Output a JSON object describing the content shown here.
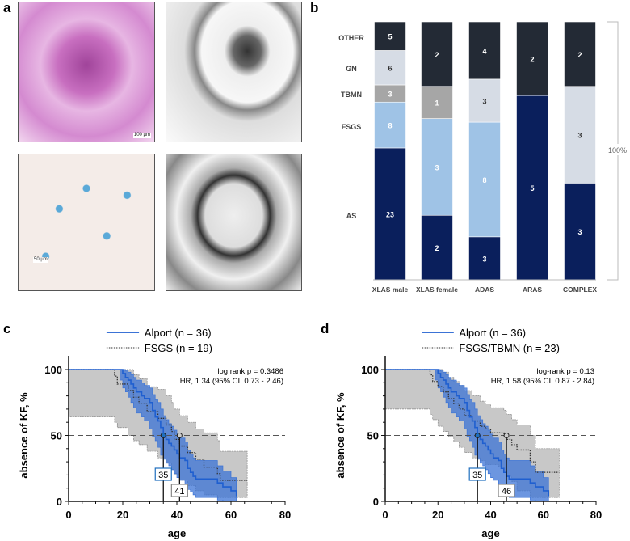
{
  "panel_labels": {
    "a": "a",
    "b": "b",
    "c": "c",
    "d": "d"
  },
  "panel_a": {
    "images": [
      "PAS light microscopy glomerulus",
      "Electron microscopy GBM",
      "Light microscopy high magnification",
      "Electron microscopy GBM detail"
    ],
    "scale_bars": [
      "100 µm",
      "50 µm"
    ]
  },
  "chart_data": [
    {
      "type": "bar",
      "stacked": true,
      "normalized": true,
      "title": "",
      "categories": [
        "XLAS male",
        "XLAS female",
        "ADAS",
        "ARAS",
        "COMPLEX"
      ],
      "series": [
        {
          "name": "AS",
          "color": "#0a1f5c",
          "values": [
            23,
            2,
            3,
            5,
            3
          ]
        },
        {
          "name": "FSGS",
          "color": "#9fc3e6",
          "values": [
            8,
            3,
            8,
            0,
            0
          ]
        },
        {
          "name": "TBMN",
          "color": "#a6a6a6",
          "values": [
            3,
            1,
            0,
            0,
            0
          ]
        },
        {
          "name": "GN",
          "color": "#d6dce5",
          "values": [
            6,
            0,
            3,
            0,
            3
          ]
        },
        {
          "name": "OTHER",
          "color": "#232a35",
          "values": [
            5,
            2,
            4,
            2,
            2
          ]
        }
      ],
      "bracket_label": "100%"
    },
    {
      "type": "line",
      "subtype": "kaplan-meier",
      "xlabel": "age",
      "ylabel": "absence of KF, %",
      "xlim": [
        0,
        80
      ],
      "ylim": [
        0,
        100
      ],
      "xticks": [
        0,
        20,
        40,
        60,
        80
      ],
      "yticks": [
        0,
        50,
        100
      ],
      "annotation": [
        "log rank p =  0.3486",
        "HR, 1.34 (95% CI, 0.73 - 2.46)"
      ],
      "series": [
        {
          "name": "Alport (n = 36)",
          "style": "solid",
          "color": "#3b73d6",
          "median": 35,
          "t": [
            0,
            19,
            20,
            21,
            22,
            23,
            24,
            25,
            27,
            28,
            30,
            31,
            32,
            33,
            34,
            35,
            36,
            37,
            38,
            39,
            40,
            41,
            43,
            44,
            45,
            46,
            47,
            55,
            57,
            60,
            62
          ],
          "y": [
            100,
            100,
            97,
            94,
            92,
            89,
            86,
            83,
            80,
            78,
            75,
            69,
            64,
            61,
            56,
            50,
            47,
            44,
            42,
            39,
            36,
            33,
            31,
            25,
            22,
            19,
            17,
            14,
            11,
            8,
            4
          ],
          "lower": [
            100,
            100,
            92,
            86,
            83,
            79,
            75,
            71,
            67,
            64,
            61,
            55,
            49,
            46,
            41,
            35,
            32,
            29,
            27,
            24,
            21,
            18,
            16,
            12,
            9,
            7,
            5,
            3,
            1,
            0,
            0
          ],
          "upper": [
            100,
            100,
            100,
            99,
            98,
            96,
            94,
            92,
            90,
            88,
            86,
            81,
            77,
            75,
            70,
            65,
            62,
            59,
            57,
            54,
            51,
            48,
            45,
            39,
            36,
            33,
            31,
            27,
            23,
            18,
            12
          ]
        },
        {
          "name": "FSGS (n = 19)",
          "style": "dotted",
          "color": "#444444",
          "median": 41,
          "t": [
            0,
            17,
            18,
            22,
            24,
            26,
            29,
            33,
            36,
            38,
            39,
            41,
            44,
            47,
            50,
            55,
            56,
            66
          ],
          "y": [
            100,
            95,
            89,
            84,
            79,
            74,
            68,
            63,
            58,
            53,
            47,
            42,
            37,
            32,
            26,
            21,
            16,
            16
          ],
          "lower": [
            100,
            64,
            60,
            56,
            50,
            46,
            43,
            38,
            33,
            29,
            24,
            20,
            16,
            12,
            8,
            5,
            3,
            3
          ],
          "upper": [
            100,
            100,
            100,
            100,
            96,
            93,
            87,
            85,
            80,
            75,
            70,
            65,
            60,
            55,
            52,
            46,
            38,
            38
          ]
        }
      ]
    },
    {
      "type": "line",
      "subtype": "kaplan-meier",
      "xlabel": "age",
      "ylabel": "absence of KF, %",
      "xlim": [
        0,
        80
      ],
      "ylim": [
        0,
        100
      ],
      "xticks": [
        0,
        20,
        40,
        60,
        80
      ],
      "yticks": [
        0,
        50,
        100
      ],
      "annotation": [
        "log-rank p = 0.13",
        "HR, 1.58 (95% CI, 0.87 - 2.84)"
      ],
      "series": [
        {
          "name": "Alport (n = 36)",
          "style": "solid",
          "color": "#3b73d6",
          "median": 35,
          "t": [
            0,
            19,
            20,
            21,
            22,
            23,
            24,
            25,
            27,
            28,
            30,
            31,
            32,
            33,
            34,
            35,
            36,
            37,
            38,
            39,
            40,
            41,
            43,
            44,
            45,
            46,
            47,
            55,
            57,
            60,
            62
          ],
          "y": [
            100,
            100,
            97,
            94,
            92,
            89,
            86,
            83,
            80,
            78,
            75,
            69,
            64,
            61,
            56,
            50,
            47,
            44,
            42,
            39,
            36,
            33,
            31,
            25,
            22,
            19,
            17,
            14,
            11,
            8,
            4
          ],
          "lower": [
            100,
            100,
            92,
            86,
            83,
            79,
            75,
            71,
            67,
            64,
            61,
            55,
            49,
            46,
            41,
            35,
            32,
            29,
            27,
            24,
            21,
            18,
            16,
            12,
            9,
            7,
            5,
            3,
            1,
            0,
            0
          ],
          "upper": [
            100,
            100,
            100,
            99,
            98,
            96,
            94,
            92,
            90,
            88,
            86,
            81,
            77,
            75,
            70,
            65,
            62,
            59,
            57,
            54,
            51,
            48,
            45,
            39,
            36,
            33,
            31,
            27,
            23,
            18,
            12
          ]
        },
        {
          "name": "FSGS/TBMN (n = 23)",
          "style": "dotted",
          "color": "#444444",
          "median": 46,
          "t": [
            0,
            17,
            18,
            20,
            22,
            24,
            26,
            28,
            30,
            33,
            36,
            38,
            40,
            43,
            45,
            46,
            48,
            50,
            55,
            57,
            66
          ],
          "y": [
            100,
            96,
            91,
            87,
            83,
            78,
            74,
            70,
            65,
            61,
            57,
            55,
            52,
            52,
            50,
            47,
            43,
            39,
            30,
            22,
            22
          ],
          "lower": [
            100,
            70,
            66,
            62,
            57,
            53,
            49,
            45,
            41,
            37,
            33,
            31,
            28,
            28,
            26,
            23,
            19,
            15,
            8,
            3,
            3
          ],
          "upper": [
            100,
            100,
            100,
            100,
            98,
            94,
            91,
            88,
            84,
            80,
            76,
            74,
            71,
            71,
            69,
            66,
            62,
            58,
            50,
            40,
            40
          ]
        }
      ]
    }
  ]
}
